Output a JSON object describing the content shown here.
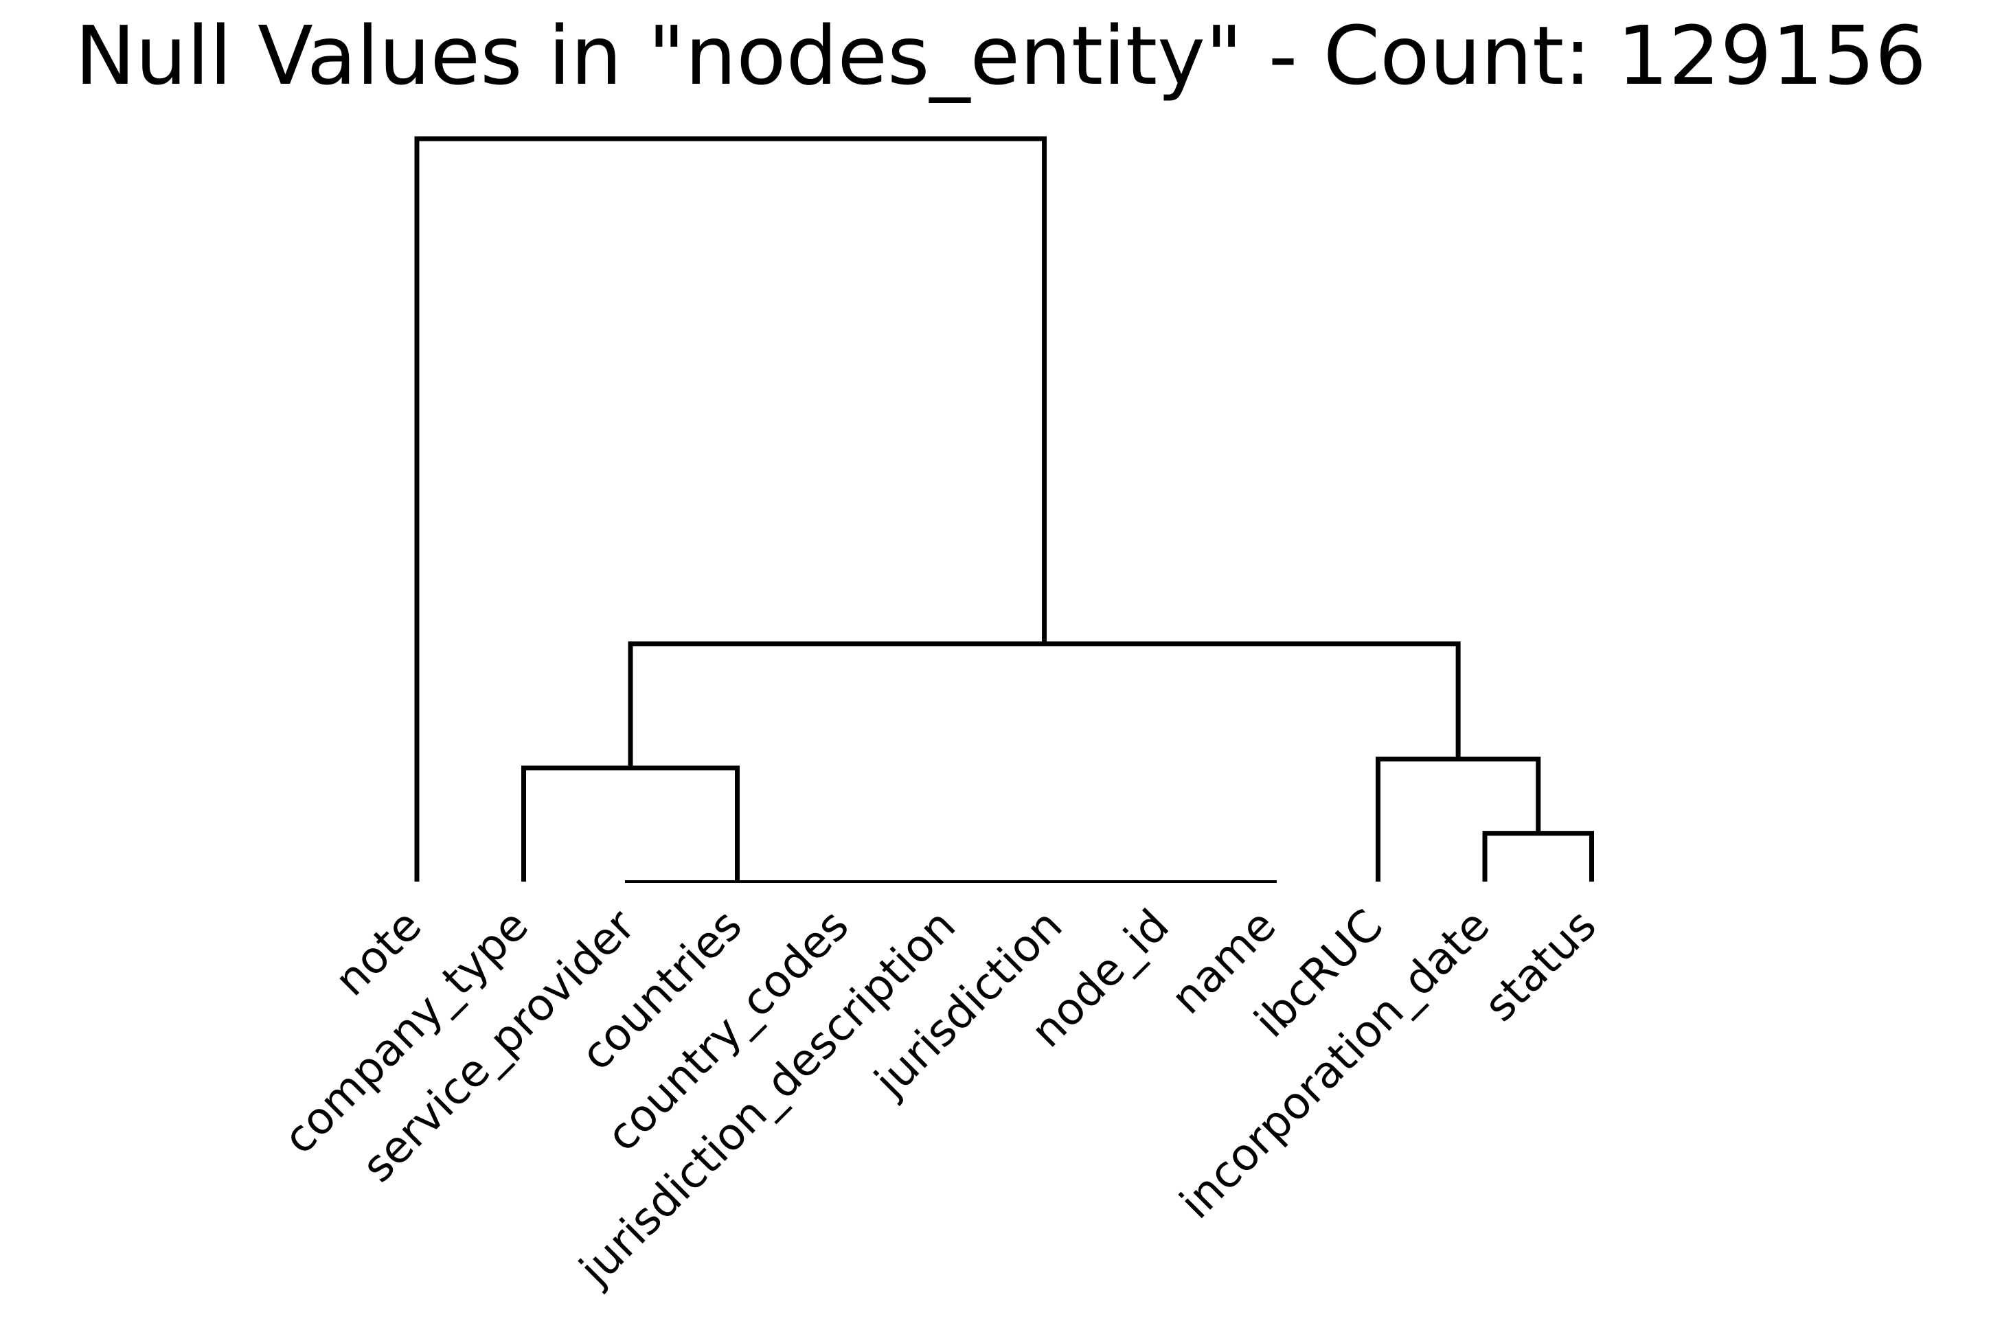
{
  "title": "Null Values in \"nodes_entity\" - Count: 129156",
  "chart_data": {
    "type": "dendrogram",
    "title": "Null Values in \"nodes_entity\" - Count: 129156",
    "leaves": [
      "note",
      "company_type",
      "service_provider",
      "countries",
      "country_codes",
      "jurisdiction_description",
      "jurisdiction",
      "node_id",
      "name",
      "ibcRUC",
      "incorporation_date",
      "status"
    ],
    "zero_distance_group": [
      "service_provider",
      "countries",
      "country_codes",
      "jurisdiction_description",
      "jurisdiction",
      "node_id",
      "name"
    ],
    "merges": [
      {
        "id": "m1",
        "left": "incorporation_date",
        "right": "status",
        "height": 0.065
      },
      {
        "id": "m2",
        "left": "ibcRUC",
        "right": "m1",
        "height": 0.165
      },
      {
        "id": "m3",
        "left": "company_type",
        "right": "zero_distance_group",
        "height": 0.153
      },
      {
        "id": "m4",
        "left": "m3",
        "right": "m2",
        "height": 0.32
      },
      {
        "id": "m5",
        "left": "note",
        "right": "m4",
        "height": 1.0
      }
    ],
    "grid": false,
    "legend": "none",
    "axes": "hidden"
  }
}
